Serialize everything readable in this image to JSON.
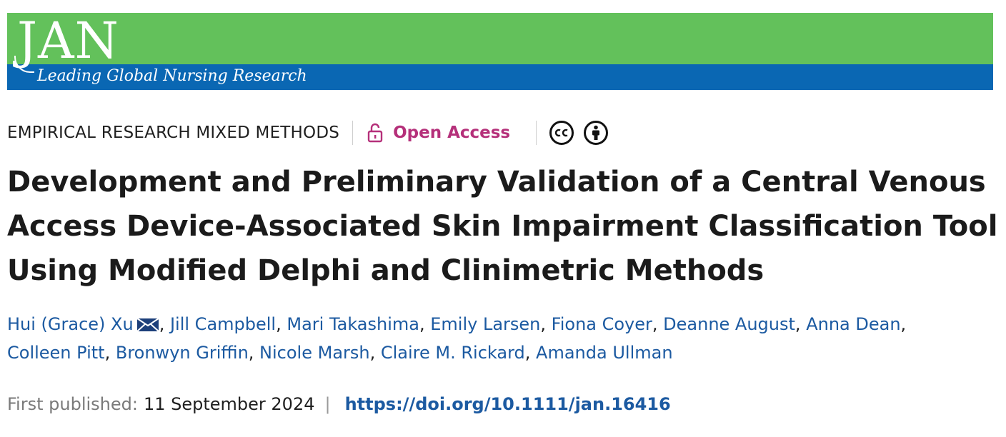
{
  "banner": {
    "logo": "JAN",
    "tagline": "Leading Global Nursing Research",
    "colors": {
      "green": "#63c15b",
      "blue": "#0a67b3"
    }
  },
  "meta": {
    "category": "EMPIRICAL RESEARCH MIXED METHODS",
    "open_access_label": "Open Access",
    "open_access_color": "#b5307a",
    "license_icons": [
      "cc-icon",
      "by-attribution-icon"
    ]
  },
  "article": {
    "title": "Development and Preliminary Validation of a Central Venous Access Device-Associated Skin Impairment Classification Tool Using Modified Delphi and Clinimetric Methods"
  },
  "authors": [
    "Hui (Grace) Xu",
    "Jill Campbell",
    "Mari Takashima",
    "Emily Larsen",
    "Fiona Coyer",
    "Deanne August",
    "Anna Dean",
    "Colleen Pitt",
    "Bronwyn Griffin",
    "Nicole Marsh",
    "Claire M. Rickard",
    "Amanda Ullman"
  ],
  "published": {
    "label": "First published:",
    "date": "11 September 2024",
    "separator": "|",
    "doi": "https://doi.org/10.1111/jan.16416"
  },
  "link_color": "#1c5aa1"
}
